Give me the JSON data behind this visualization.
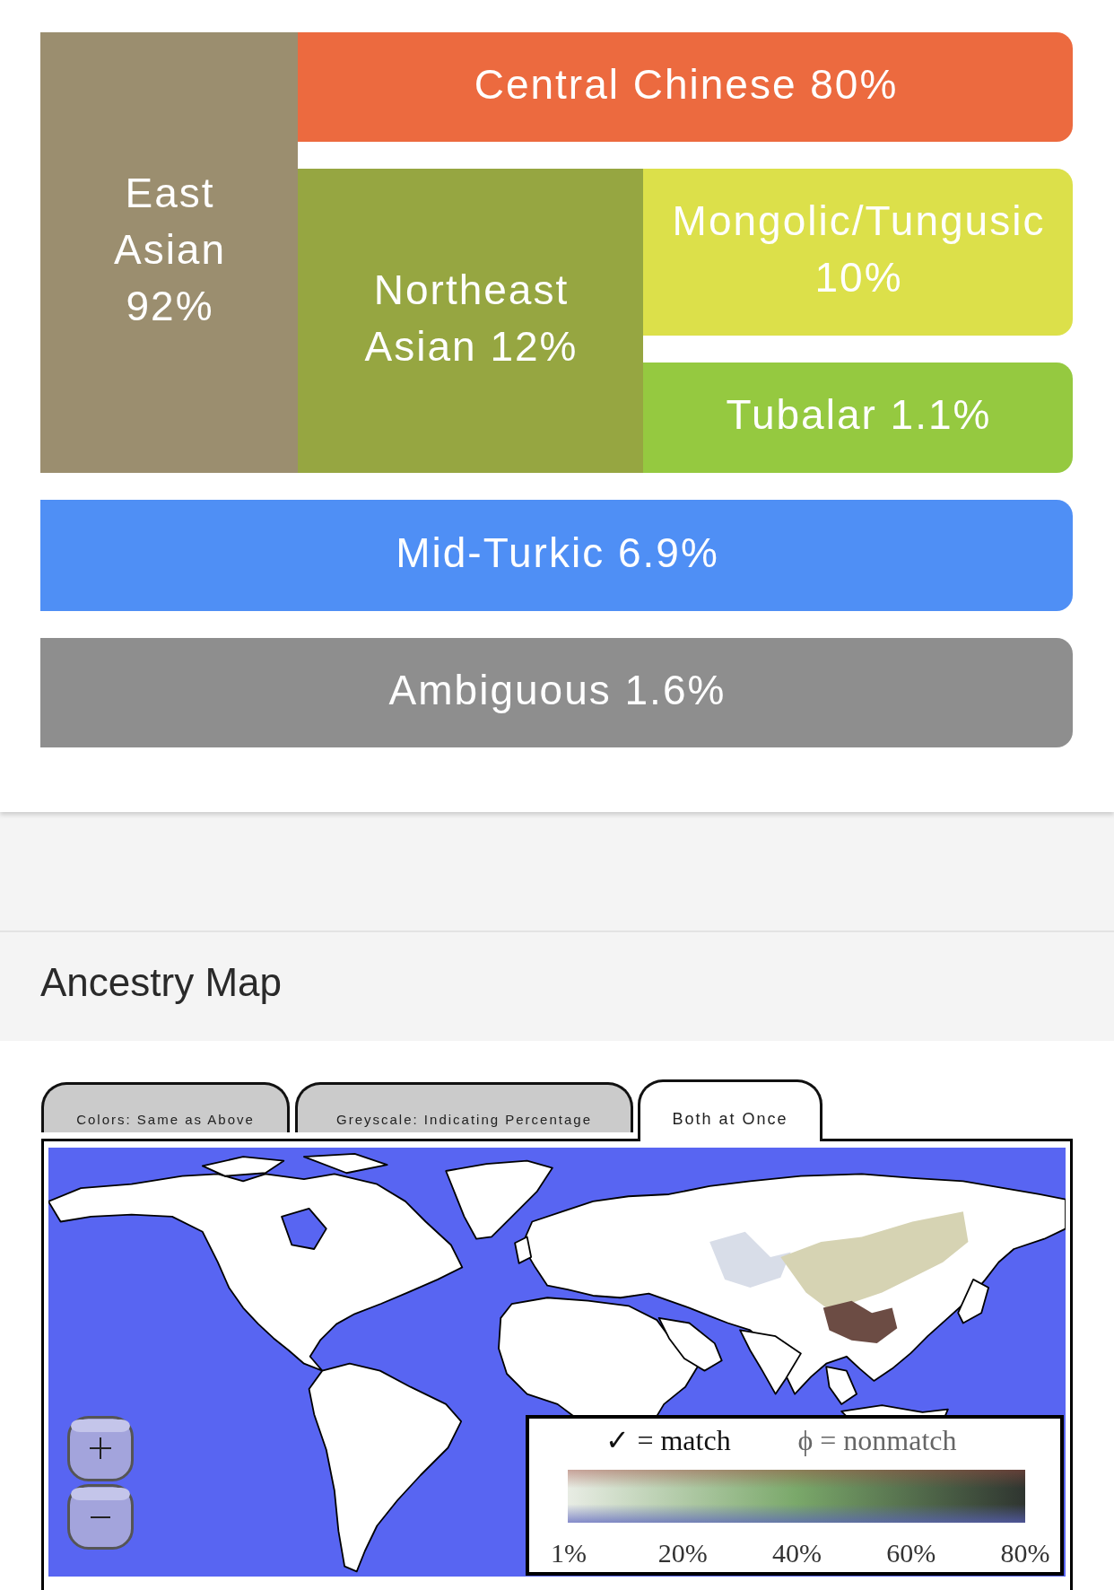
{
  "chart_data": [
    {
      "type": "other",
      "categories": [
        "East Asian",
        "Central Chinese",
        "Northeast Asian",
        "Mongolic/Tungusic",
        "Tubalar",
        "Mid-Turkic",
        "Ambiguous"
      ],
      "values": [
        92,
        80,
        12,
        10,
        1.1,
        6.9,
        1.6
      ],
      "value_labels": [
        "92%",
        "80%",
        "12%",
        "10%",
        "1.1%",
        "6.9%",
        "1.6%"
      ],
      "colors": [
        "#9b8e6f",
        "#ec6a3f",
        "#96a641",
        "#dce04a",
        "#95c940",
        "#4f8ff5",
        "#8e8e8e"
      ]
    },
    {
      "type": "other",
      "title": "Ancestry Map",
      "annotations": [
        "Colors: Same as Above",
        "Greyscale: Indicating Percentage",
        "Both at Once",
        "✓ = match",
        "ϕ = nonmatch",
        "1%",
        "20%",
        "40%",
        "60%",
        "80%"
      ]
    }
  ]
}
